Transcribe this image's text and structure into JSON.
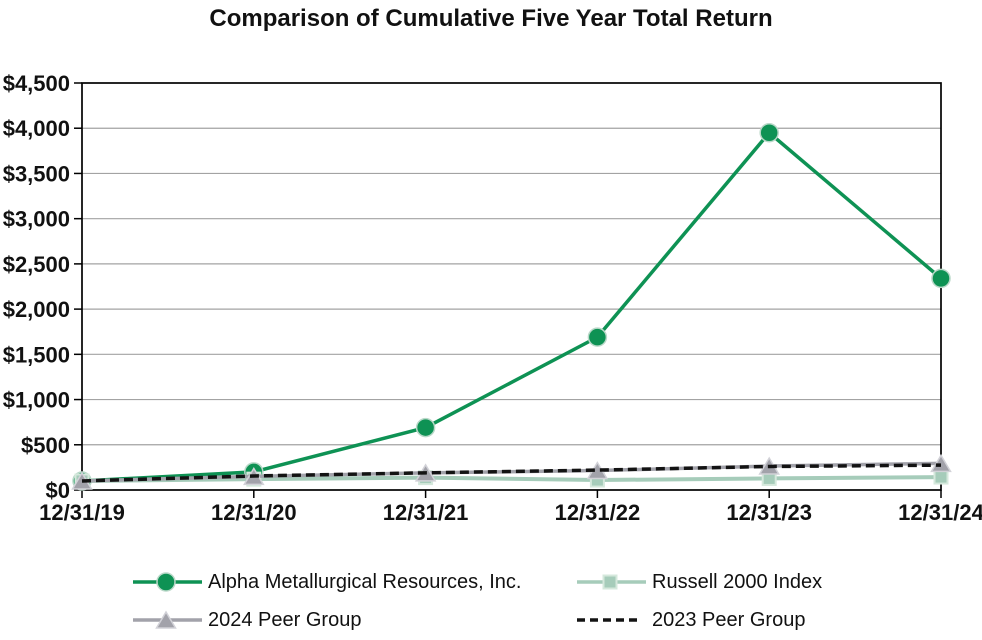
{
  "chart_data": {
    "type": "line",
    "title": "Comparison of Cumulative Five Year Total Return",
    "x": [
      "12/31/19",
      "12/31/20",
      "12/31/21",
      "12/31/22",
      "12/31/23",
      "12/31/24"
    ],
    "series": [
      {
        "name": "Alpha Metallurgical Resources, Inc.",
        "marker": "circle",
        "dashed": false,
        "color": "#0e9254",
        "halo": "#b9d8c8",
        "line_width": 3.5,
        "values": [
          100,
          200,
          690,
          1690,
          3950,
          2340
        ]
      },
      {
        "name": "Russell 2000 Index",
        "marker": "square",
        "dashed": false,
        "color": "#a6ccba",
        "halo": "#d5e8dc",
        "line_width": 4,
        "values": [
          100,
          120,
          137,
          110,
          128,
          143
        ]
      },
      {
        "name": "2024 Peer Group",
        "marker": "triangle",
        "dashed": false,
        "color": "#a2a2aa",
        "halo": "#d2d2d8",
        "line_width": 3.5,
        "values": [
          100,
          150,
          190,
          215,
          265,
          295
        ]
      },
      {
        "name": "2023 Peer Group",
        "marker": "none",
        "dashed": true,
        "color": "#131313",
        "halo": "none",
        "line_width": 3.5,
        "values": [
          100,
          155,
          190,
          220,
          260,
          275
        ]
      }
    ],
    "yticks": [
      0,
      500,
      1000,
      1500,
      2000,
      2500,
      3000,
      3500,
      4000,
      4500
    ],
    "ytick_labels": [
      "$0",
      "$500",
      "$1,000",
      "$1,500",
      "$2,000",
      "$2,500",
      "$3,000",
      "$3,500",
      "$4,000",
      "$4,500"
    ],
    "ylim": [
      0,
      4500
    ],
    "grid": true,
    "legend_position": "bottom",
    "colors": {
      "gridline": "#a3a3a3",
      "axis": "#000000",
      "text": "#111111",
      "background": "#ffffff"
    }
  }
}
